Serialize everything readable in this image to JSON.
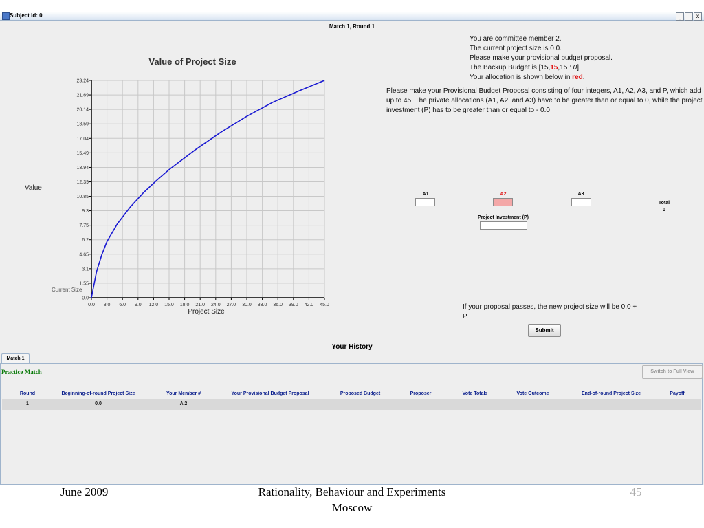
{
  "window": {
    "title": "Subject Id: 0",
    "controls": [
      "_",
      "̅",
      "x"
    ],
    "match_round": "Match 1, Round 1"
  },
  "chart_data": {
    "type": "line",
    "title": "Value of Project Size",
    "xlabel": "Project Size",
    "ylabel": "Value",
    "xlim": [
      0,
      45
    ],
    "ylim": [
      0,
      23.24
    ],
    "x_ticks": [
      "0.0",
      "3.0",
      "6.0",
      "9.0",
      "12.0",
      "15.0",
      "18.0",
      "21.0",
      "24.0",
      "27.0",
      "30.0",
      "33.0",
      "36.0",
      "39.0",
      "42.0",
      "45.0"
    ],
    "y_ticks": [
      "0.0",
      "1.55",
      "3.1",
      "4.65",
      "6.2",
      "7.75",
      "9.3",
      "10.85",
      "12.39",
      "13.94",
      "15.49",
      "17.04",
      "18.59",
      "20.14",
      "21.69",
      "23.24"
    ],
    "grid": true,
    "current_size_label": "Current Size",
    "series": [
      {
        "color": "#1a1ad2",
        "x": [
          0,
          1,
          2,
          3,
          5,
          7.5,
          10,
          12.5,
          15,
          20,
          25,
          30,
          35,
          40,
          45
        ],
        "y": [
          0,
          2.8,
          4.6,
          6.0,
          7.9,
          9.7,
          11.2,
          12.5,
          13.7,
          15.8,
          17.7,
          19.4,
          20.9,
          22.1,
          23.24
        ]
      }
    ]
  },
  "info": {
    "line1": "You are committee member 2.",
    "line2": "The current project size is 0.0.",
    "line3": "Please make your provisional budget proposal.",
    "line4_prefix": "The Backup Budget is [15,",
    "line4_red": "15",
    "line4_mid": ",15 : ",
    "line4_italic": "0",
    "line4_suffix": "].",
    "line5_prefix": "Your allocation is shown below in ",
    "line5_red": "red",
    "line5_suffix": "."
  },
  "instructions": "Please make your Provisional Budget Proposal consisting of four integers, A1, A2, A3, and P, which add up to 45. The private allocations (A1, A2, and A3) have to be greater than or equal to 0, while the project investment (P) has to be greater than or equal to - 0.0",
  "form": {
    "a1_label": "A1",
    "a2_label": "A2",
    "a3_label": "A3",
    "a1_value": "",
    "a2_value": "",
    "a3_value": "",
    "p_label": "Project Investment (P)",
    "p_value": "",
    "total_label": "Total",
    "total_value": "0",
    "highlight_color": "#f4a8a8"
  },
  "pass_text": "If your proposal passes, the new project size will be 0.0 + P.",
  "submit_label": "Submit",
  "history": {
    "title": "Your History",
    "tab_label": "Match 1",
    "practice_label": "Practice Match",
    "switch_label": "Switch to Full View",
    "columns": [
      "Round",
      "Beginning-of-round Project Size",
      "Your Member #",
      "Your Provisional Budget Proposal",
      "Proposed Budget",
      "Proposer",
      "Vote Totals",
      "Vote Outcome",
      "End-of-round Project Size",
      "Payoff"
    ],
    "row": {
      "round": "1",
      "begin_size": "0.0",
      "member": "A 2"
    }
  },
  "footer": {
    "date": "June 2009",
    "line1": "Rationality, Behaviour and Experiments",
    "line2": "Moscow",
    "page": "45"
  }
}
